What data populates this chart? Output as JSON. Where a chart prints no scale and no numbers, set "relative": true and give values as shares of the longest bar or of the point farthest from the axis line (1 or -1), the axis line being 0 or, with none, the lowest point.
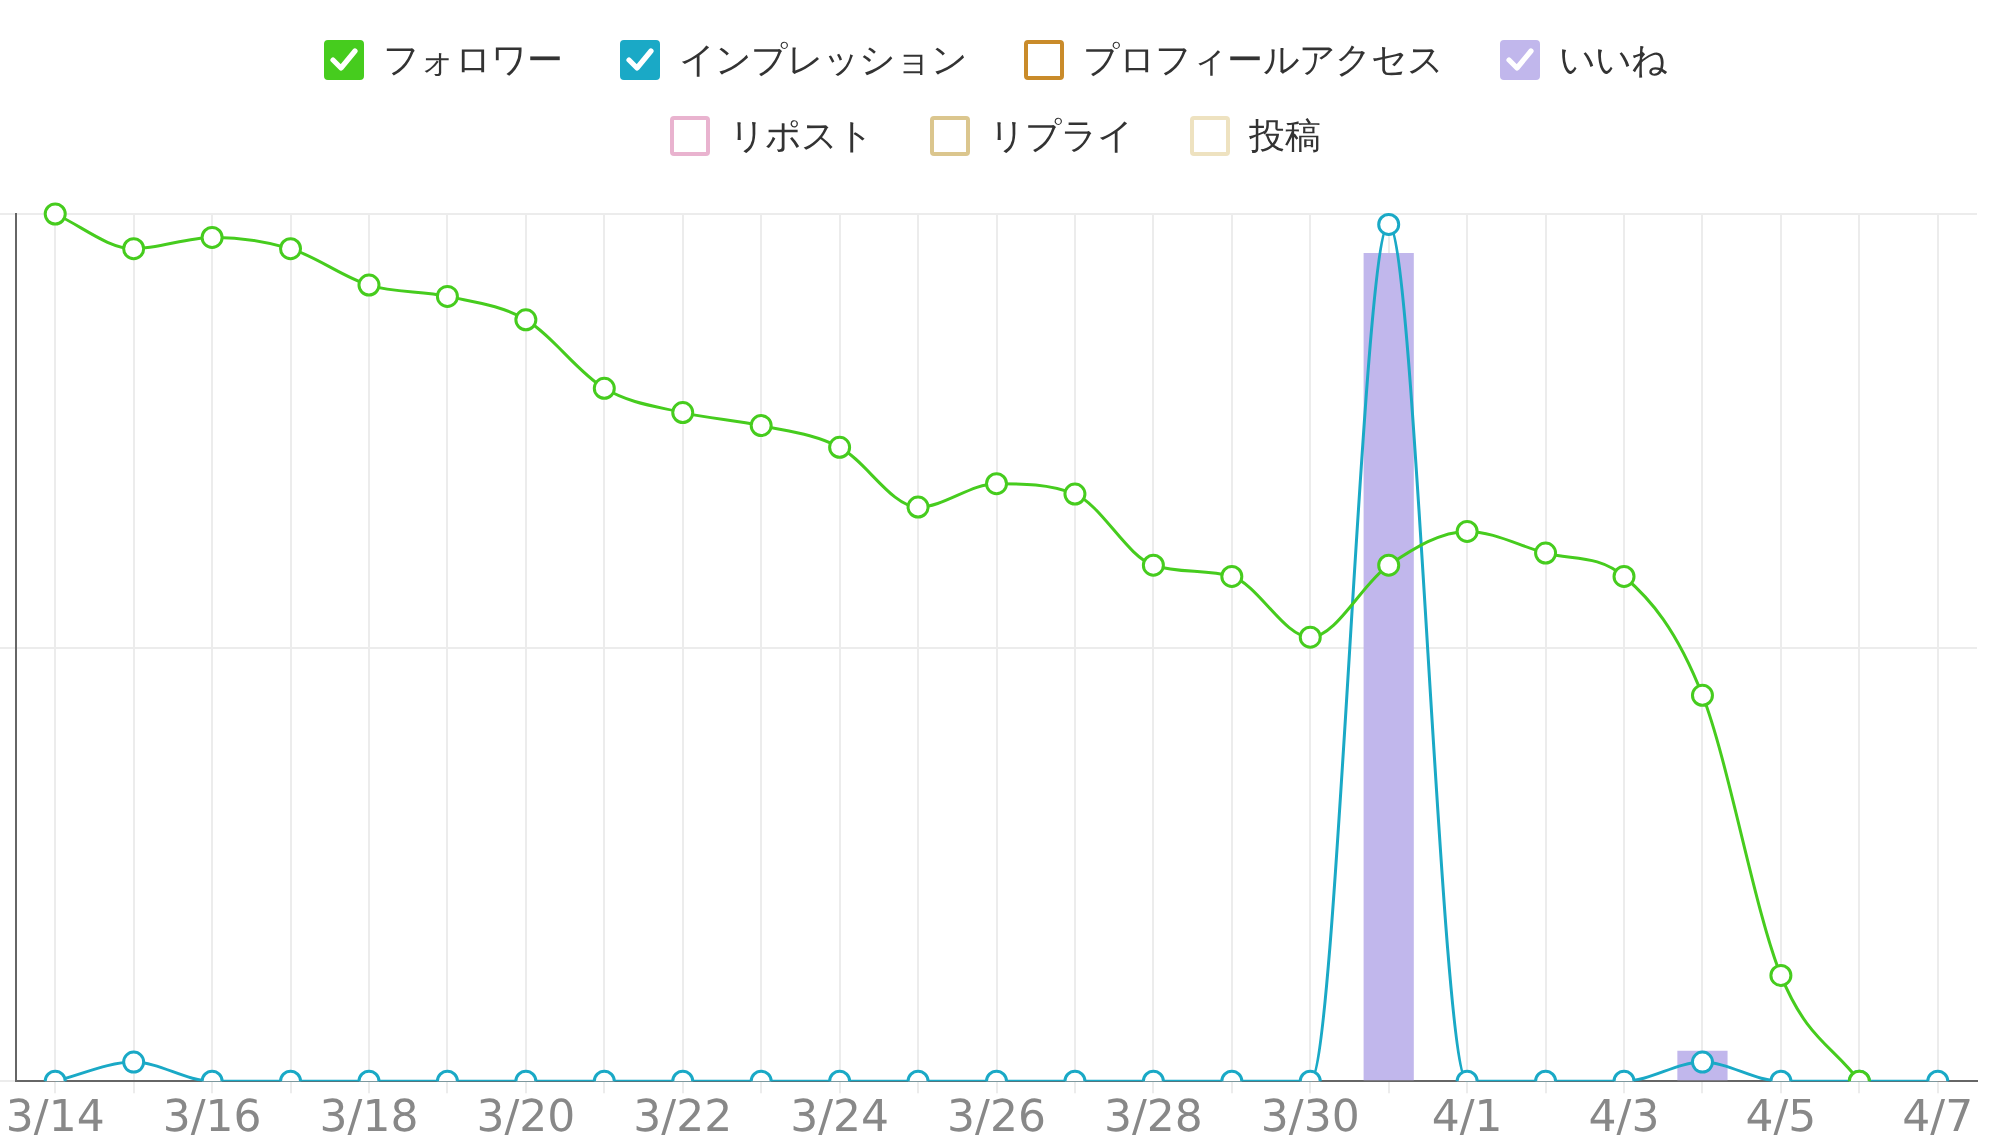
{
  "chart_data": {
    "type": "line",
    "relative": true,
    "grid": true,
    "legend": "top",
    "marker": "circle",
    "categories": [
      "3/14",
      null,
      "3/16",
      null,
      "3/18",
      null,
      "3/20",
      null,
      "3/22",
      null,
      "3/24",
      null,
      "3/26",
      null,
      "3/28",
      null,
      "3/30",
      null,
      "4/1",
      null,
      "4/3",
      null,
      "4/5",
      null,
      "4/7"
    ],
    "series": [
      {
        "name": "フォロワー",
        "color": "#46cc1e",
        "values": [
          1,
          0.96,
          0.973,
          0.96,
          0.918,
          0.905,
          0.878,
          0.799,
          0.771,
          0.756,
          0.731,
          0.662,
          0.689,
          0.677,
          0.595,
          0.582,
          0.512,
          0.595,
          0.634,
          0.609,
          0.582,
          0.445,
          0.122,
          0,
          null
        ]
      },
      {
        "name": "インプレッション",
        "color": "#1aa9c6",
        "values": [
          0,
          0.022,
          0,
          0,
          0,
          0,
          0,
          0,
          0,
          0,
          0,
          0,
          0,
          0,
          0,
          0,
          0,
          0.988,
          0,
          0,
          0,
          0.022,
          0,
          0,
          0
        ]
      },
      {
        "name": "プロフィールアクセス",
        "color": "#c98b2a",
        "values": [
          null,
          null,
          null,
          null,
          null,
          null,
          null,
          null,
          null,
          null,
          null,
          null,
          null,
          null,
          null,
          null,
          null,
          null,
          null,
          null,
          null,
          null,
          null,
          null,
          null
        ]
      },
      {
        "name": "いいね",
        "type": "bar",
        "color": "#c1b7ec",
        "values": [
          0,
          0,
          0,
          0,
          0,
          0,
          0,
          0,
          0,
          0,
          0,
          0,
          0,
          0,
          0,
          0,
          0,
          0.955,
          0,
          0,
          0,
          0.035,
          0,
          0,
          0
        ]
      },
      {
        "name": "リポスト",
        "color": "#e9b3cf",
        "values": [
          null,
          null,
          null,
          null,
          null,
          null,
          null,
          null,
          null,
          null,
          null,
          null,
          null,
          null,
          null,
          null,
          null,
          null,
          null,
          null,
          null,
          null,
          null,
          null,
          null
        ]
      },
      {
        "name": "リプライ",
        "color": "#dbc68e",
        "values": [
          null,
          null,
          null,
          null,
          null,
          null,
          null,
          null,
          null,
          null,
          null,
          null,
          null,
          null,
          null,
          null,
          null,
          null,
          null,
          null,
          null,
          null,
          null,
          null,
          null
        ]
      },
      {
        "name": "投稿",
        "color": "#eee2c0",
        "values": [
          null,
          null,
          null,
          null,
          null,
          null,
          null,
          null,
          null,
          null,
          null,
          null,
          null,
          null,
          null,
          null,
          null,
          null,
          null,
          null,
          null,
          null,
          null,
          null,
          null
        ]
      }
    ]
  }
}
